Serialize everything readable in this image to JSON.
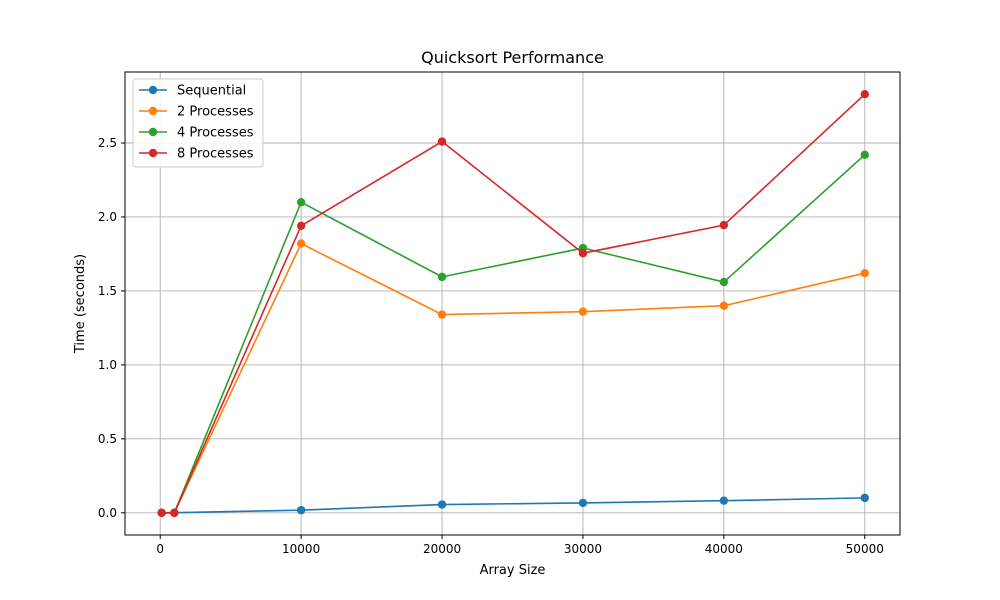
{
  "chart_data": {
    "type": "line",
    "title": "Quicksort Performance",
    "xlabel": "Array Size",
    "ylabel": "Time (seconds)",
    "xlim": [
      -2500,
      52500
    ],
    "ylim": [
      -0.15,
      2.98
    ],
    "xticks": [
      0,
      10000,
      20000,
      30000,
      40000,
      50000
    ],
    "yticks": [
      0.0,
      0.5,
      1.0,
      1.5,
      2.0,
      2.5
    ],
    "xtick_labels": [
      "0",
      "10000",
      "20000",
      "30000",
      "40000",
      "50000"
    ],
    "ytick_labels": [
      "0.0",
      "0.5",
      "1.0",
      "1.5",
      "2.0",
      "2.5"
    ],
    "grid": true,
    "legend_position": "top-left",
    "x": [
      100,
      1000,
      10000,
      20000,
      30000,
      40000,
      50000
    ],
    "series": [
      {
        "name": "Sequential",
        "color": "#1f77b4",
        "values": [
          0.0,
          0.001,
          0.018,
          0.056,
          0.067,
          0.082,
          0.101
        ]
      },
      {
        "name": "2 Processes",
        "color": "#ff7f0e",
        "values": [
          0.0,
          0.0,
          1.82,
          1.34,
          1.36,
          1.4,
          1.62
        ]
      },
      {
        "name": "4 Processes",
        "color": "#2ca02c",
        "values": [
          0.0,
          0.0,
          2.1,
          1.595,
          1.79,
          1.56,
          2.42
        ]
      },
      {
        "name": "8 Processes",
        "color": "#d62728",
        "values": [
          0.0,
          0.0,
          1.94,
          2.51,
          1.755,
          1.945,
          2.83
        ]
      }
    ]
  }
}
